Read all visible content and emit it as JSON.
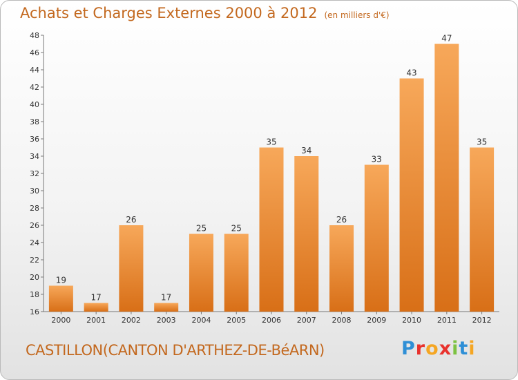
{
  "title": "Achats et Charges Externes 2000 à 2012",
  "unit_note": "(en milliers d'€)",
  "footer_label": "CASTILLON(CANTON D'ARTHEZ-DE-BéARN)",
  "logo": {
    "letters": [
      {
        "ch": "P",
        "color": "#2e8fd6"
      },
      {
        "ch": "r",
        "color": "#e8322d"
      },
      {
        "ch": "o",
        "color": "#f5a623"
      },
      {
        "ch": "x",
        "color": "#e8322d"
      },
      {
        "ch": "i",
        "color": "#7cc242"
      },
      {
        "ch": "t",
        "color": "#2e8fd6"
      },
      {
        "ch": "i",
        "color": "#f5a623"
      }
    ]
  },
  "colors": {
    "bar_light": "#f7a85a",
    "bar_dark": "#d86f17",
    "accent_text": "#c3681e",
    "axis": "#777777"
  },
  "chart_data": {
    "type": "bar",
    "categories": [
      "2000",
      "2001",
      "2002",
      "2003",
      "2004",
      "2005",
      "2006",
      "2007",
      "2008",
      "2009",
      "2010",
      "2011",
      "2012"
    ],
    "values": [
      19,
      17,
      26,
      17,
      25,
      25,
      35,
      34,
      26,
      33,
      43,
      47,
      35
    ],
    "ylim": [
      16,
      48
    ],
    "yticks": [
      16,
      18,
      20,
      22,
      24,
      26,
      28,
      30,
      32,
      34,
      36,
      38,
      40,
      42,
      44,
      46,
      48
    ],
    "grid": false
  }
}
